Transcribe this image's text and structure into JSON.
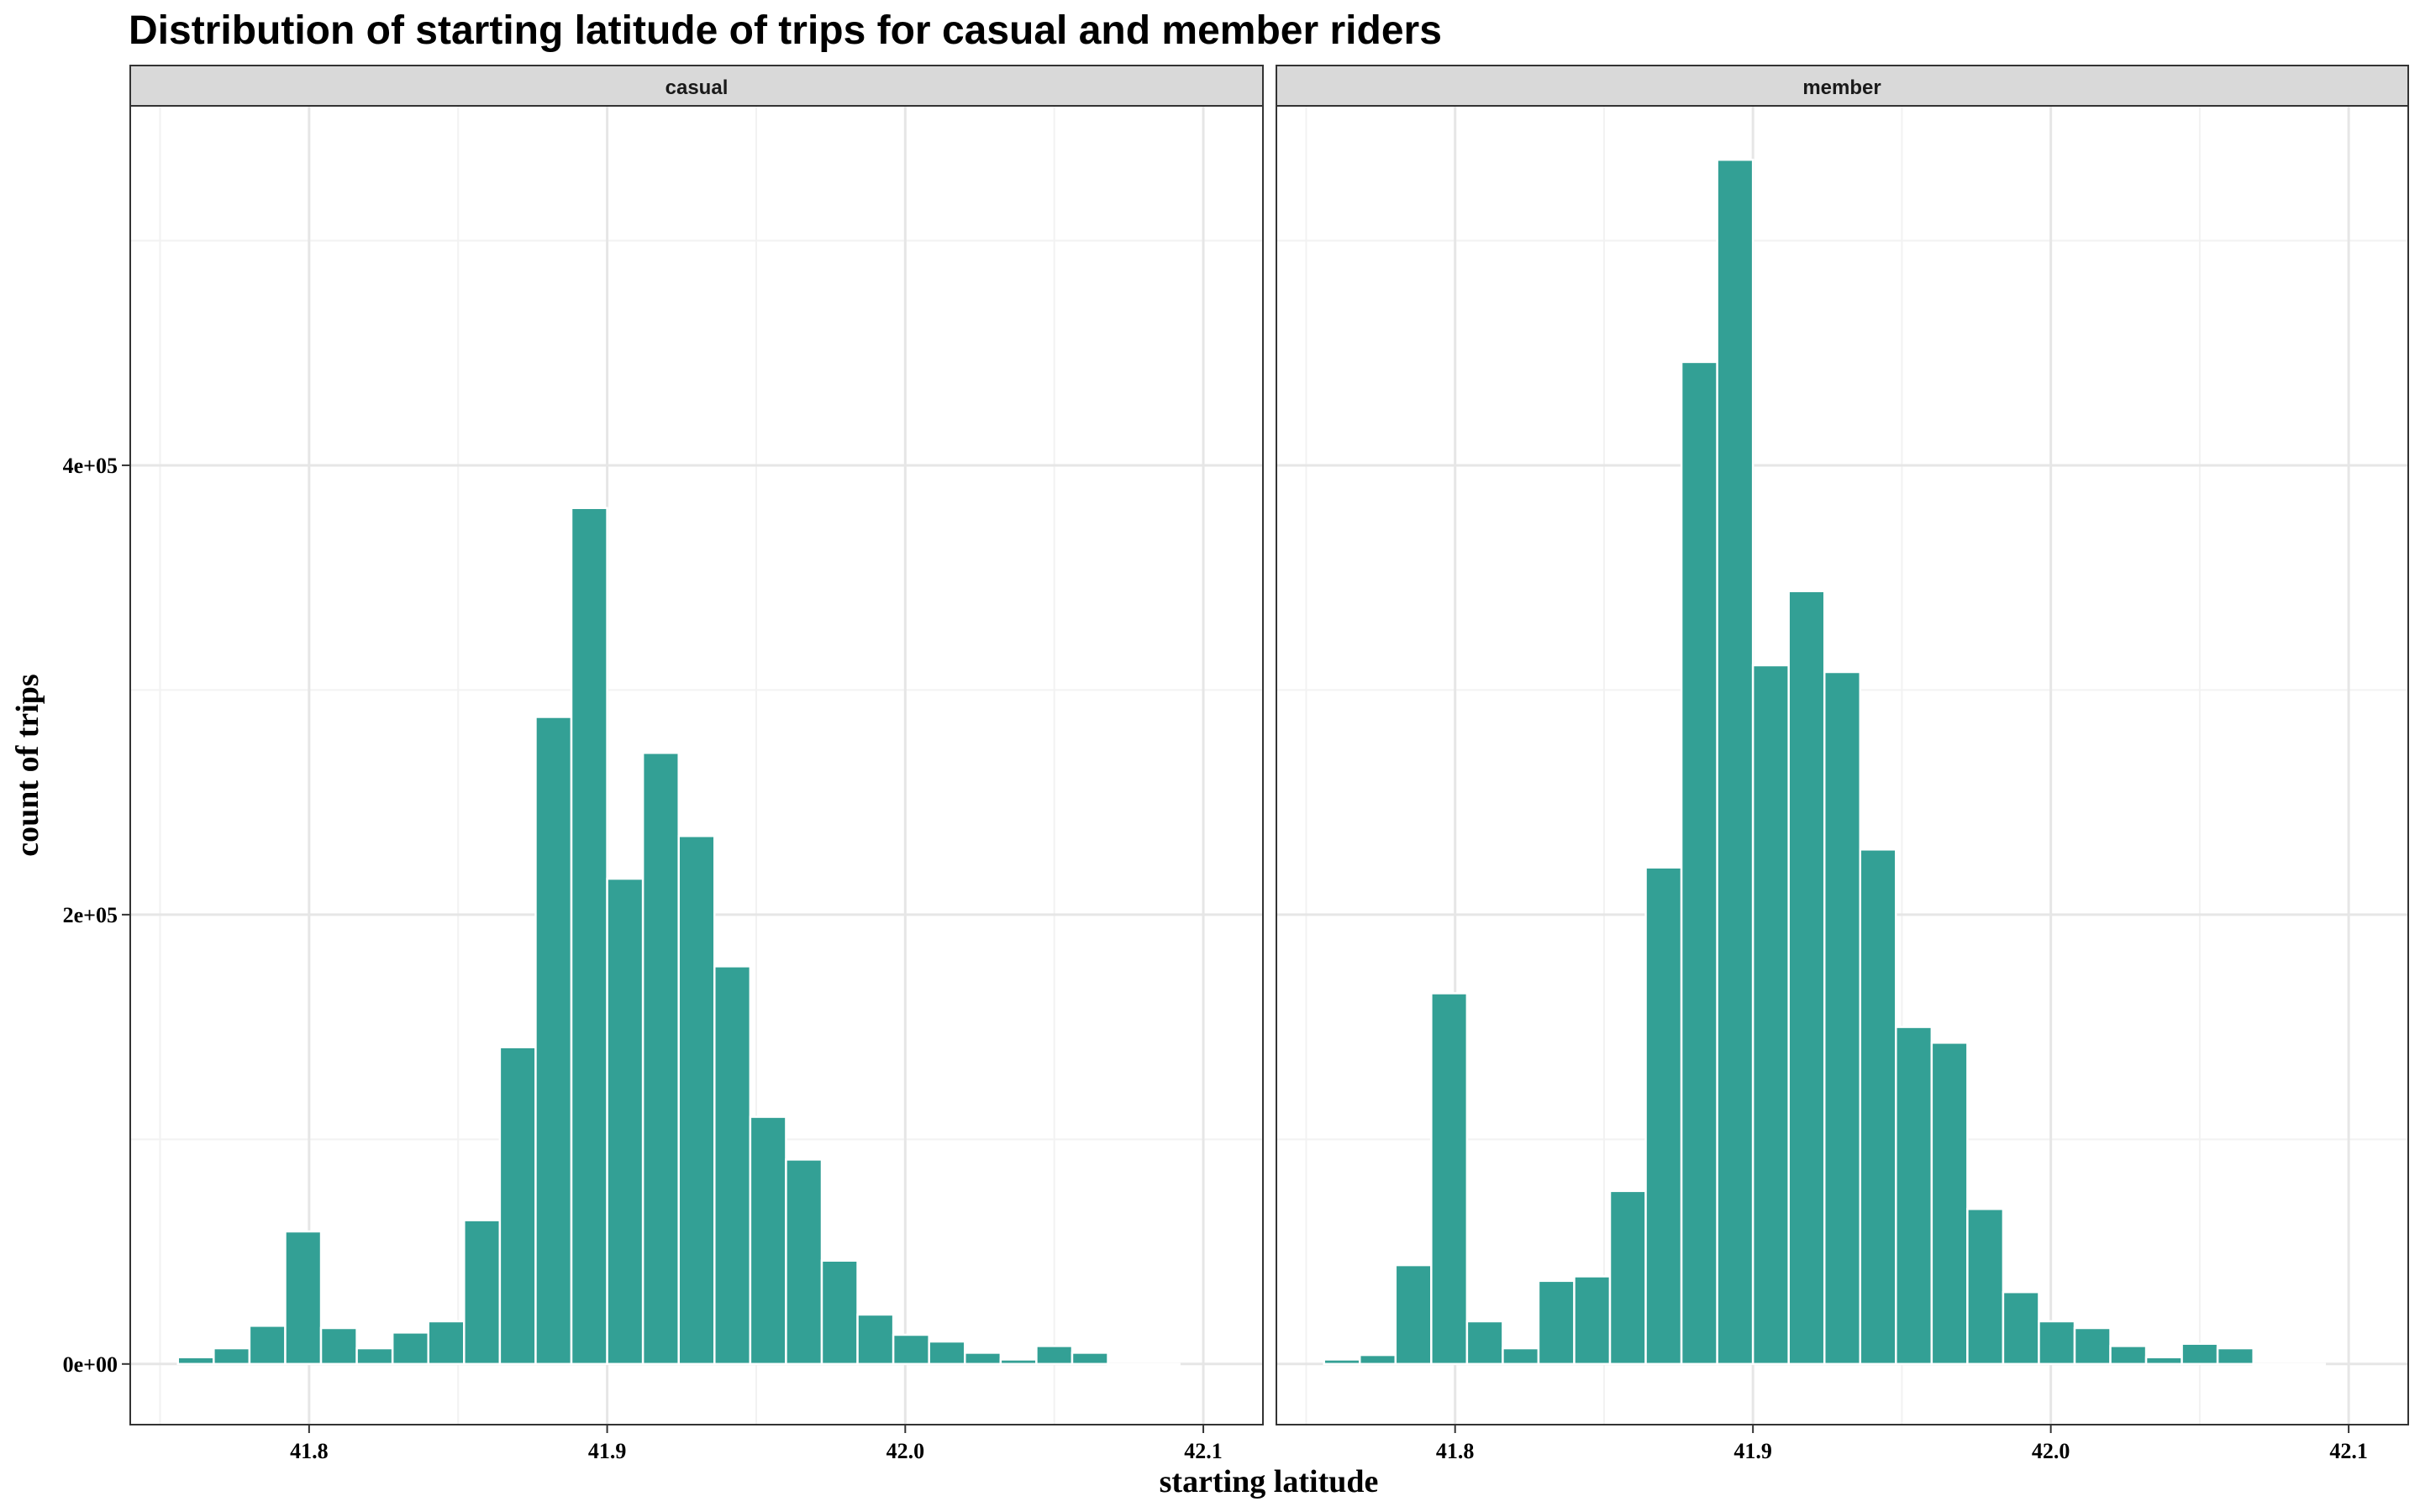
{
  "chart_data": {
    "type": "bar",
    "title": "Distribution of starting latitude of trips for casual and member riders",
    "xlabel": "starting latitude",
    "ylabel": "count of trips",
    "x_ticks": [
      41.8,
      41.9,
      42.0,
      42.1
    ],
    "y_ticks": [
      0,
      200000,
      400000
    ],
    "y_tick_labels": [
      "0e+00",
      "2e+05",
      "4e+05"
    ],
    "xlim": [
      41.74,
      42.12
    ],
    "ylim": [
      -27000,
      560000
    ],
    "grid": true,
    "bar_color": "#33a095",
    "bin_width": 0.012,
    "bin_centers": [
      41.762,
      41.774,
      41.786,
      41.798,
      41.81,
      41.822,
      41.834,
      41.846,
      41.858,
      41.87,
      41.882,
      41.894,
      41.906,
      41.918,
      41.93,
      41.942,
      41.954,
      41.966,
      41.978,
      41.99,
      42.002,
      42.014,
      42.026,
      42.038,
      42.05,
      42.062,
      42.074,
      42.086
    ],
    "panels": [
      {
        "name": "casual",
        "values": [
          3000,
          7000,
          17000,
          59000,
          16000,
          7000,
          14000,
          19000,
          64000,
          141000,
          288000,
          381000,
          216000,
          272000,
          235000,
          177000,
          110000,
          91000,
          46000,
          22000,
          13000,
          10000,
          5000,
          2000,
          8000,
          5000,
          0,
          0
        ]
      },
      {
        "name": "member",
        "values": [
          2000,
          4000,
          44000,
          165000,
          19000,
          7000,
          37000,
          39000,
          77000,
          221000,
          446000,
          536000,
          311000,
          344000,
          308000,
          229000,
          150000,
          143000,
          69000,
          32000,
          19000,
          16000,
          8000,
          3000,
          9000,
          7000,
          0,
          0
        ]
      }
    ]
  }
}
